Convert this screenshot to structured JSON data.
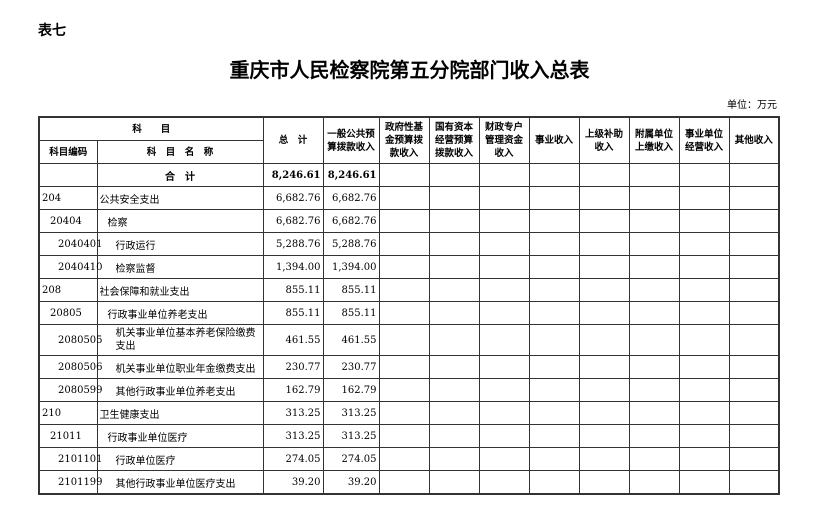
{
  "tag": "表七",
  "title": "重庆市人民检察院第五分院部门收入总表",
  "unit": "单位：万元",
  "headers": {
    "subject": "科　　目",
    "code": "科目编码",
    "name": "科　目　名　称",
    "total": "总　计",
    "c1": "一般公共预算拨款收入",
    "c2": "政府性基金预算拨款收入",
    "c3": "国有资本经营预算拨款收入",
    "c4": "财政专户管理资金收入",
    "c5": "事业收入",
    "c6": "上级补助收入",
    "c7": "附属单位上缴收入",
    "c8": "事业单位经营收入",
    "c9": "其他收入"
  },
  "sum_row": {
    "label": "合　计",
    "total": "8,246.61",
    "c1": "8,246.61"
  },
  "rows": [
    {
      "code": "204",
      "name": "公共安全支出",
      "total": "6,682.76",
      "c1": "6,682.76",
      "level": 1
    },
    {
      "code": "20404",
      "name": "检察",
      "total": "6,682.76",
      "c1": "6,682.76",
      "level": 2
    },
    {
      "code": "2040401",
      "name": "行政运行",
      "total": "5,288.76",
      "c1": "5,288.76",
      "level": 3
    },
    {
      "code": "2040410",
      "name": "检察监督",
      "total": "1,394.00",
      "c1": "1,394.00",
      "level": 3
    },
    {
      "code": "208",
      "name": "社会保障和就业支出",
      "total": "855.11",
      "c1": "855.11",
      "level": 1
    },
    {
      "code": "20805",
      "name": "行政事业单位养老支出",
      "total": "855.11",
      "c1": "855.11",
      "level": 2
    },
    {
      "code": "2080505",
      "name": "机关事业单位基本养老保险缴费支出",
      "total": "461.55",
      "c1": "461.55",
      "level": 3
    },
    {
      "code": "2080506",
      "name": "机关事业单位职业年金缴费支出",
      "total": "230.77",
      "c1": "230.77",
      "level": 3
    },
    {
      "code": "2080599",
      "name": "其他行政事业单位养老支出",
      "total": "162.79",
      "c1": "162.79",
      "level": 3
    },
    {
      "code": "210",
      "name": "卫生健康支出",
      "total": "313.25",
      "c1": "313.25",
      "level": 1
    },
    {
      "code": "21011",
      "name": "行政事业单位医疗",
      "total": "313.25",
      "c1": "313.25",
      "level": 2
    },
    {
      "code": "2101101",
      "name": "行政单位医疗",
      "total": "274.05",
      "c1": "274.05",
      "level": 3
    },
    {
      "code": "2101199",
      "name": "其他行政事业单位医疗支出",
      "total": "39.20",
      "c1": "39.20",
      "level": 3
    }
  ]
}
